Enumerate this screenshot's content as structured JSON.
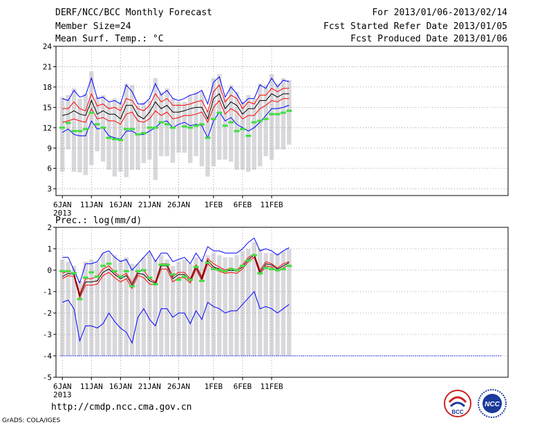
{
  "header": {
    "title": "DERF/NCC/BCC Monthly Forecast",
    "member_size": "Member Size=24",
    "variable": "Mean Surf. Temp.: °C",
    "period": "For 2013/01/06-2013/02/14",
    "fcst_start": "Fcst Started Refer Date 2013/01/05",
    "fcst_produced": "Fcst Produced Date 2013/01/06"
  },
  "footer": {
    "url": "http://cmdp.ncc.cma.gov.cn",
    "credit": "GrADS: COLA/IGES"
  },
  "logos": {
    "bcc": "BCC",
    "ncc": "NCC"
  },
  "colors": {
    "max_min": "#0000ff",
    "plus_minus_sd": "#ff0000",
    "mean": "#000000",
    "observed": "#44dd44",
    "range_bar": "#d8d8dc"
  },
  "chart_data": [
    {
      "type": "line",
      "label": "",
      "dates": [
        "6JAN",
        "7JAN",
        "8JAN",
        "9JAN",
        "10JAN",
        "11JAN",
        "12JAN",
        "13JAN",
        "14JAN",
        "15JAN",
        "16JAN",
        "17JAN",
        "18JAN",
        "19JAN",
        "20JAN",
        "21JAN",
        "22JAN",
        "23JAN",
        "24JAN",
        "25JAN",
        "26JAN",
        "27JAN",
        "28JAN",
        "29JAN",
        "30JAN",
        "31JAN",
        "1FEB",
        "2FEB",
        "3FEB",
        "4FEB",
        "5FEB",
        "6FEB",
        "7FEB",
        "8FEB",
        "9FEB",
        "10FEB",
        "11FEB",
        "12FEB",
        "13FEB",
        "14FEB"
      ],
      "xticks": [
        "6JAN",
        "11JAN",
        "16JAN",
        "21JAN",
        "26JAN",
        "1FEB",
        "6FEB",
        "11FEB"
      ],
      "xyear": "2013",
      "ylim": [
        2,
        24
      ],
      "yticks": [
        3,
        6,
        9,
        12,
        15,
        18,
        21,
        24
      ],
      "bar_low": [
        5.5,
        8.8,
        5.5,
        5.4,
        5.0,
        6.5,
        8.5,
        7.0,
        5.8,
        4.8,
        5.5,
        4.7,
        5.8,
        5.8,
        6.8,
        7.3,
        4.3,
        7.8,
        7.8,
        6.8,
        8.3,
        8.3,
        6.8,
        7.8,
        6.3,
        4.8,
        6.3,
        7.3,
        7.3,
        7.0,
        5.8,
        5.8,
        5.5,
        5.8,
        6.3,
        7.8,
        7.3,
        8.8,
        8.8,
        9.5
      ],
      "bar_high": [
        16.5,
        16.8,
        17.8,
        16.3,
        17.0,
        20.3,
        16.5,
        16.8,
        15.8,
        16.3,
        15.8,
        18.5,
        18.3,
        15.3,
        15.8,
        16.0,
        19.3,
        17.3,
        17.8,
        16.3,
        15.8,
        15.8,
        16.8,
        17.3,
        17.3,
        14.5,
        19.3,
        19.9,
        16.3,
        18.3,
        17.3,
        15.8,
        16.8,
        16.3,
        18.5,
        18.3,
        19.9,
        18.5,
        19.3,
        19.0
      ],
      "series": [
        {
          "name": "Max",
          "values": [
            16.3,
            16.0,
            17.5,
            16.5,
            16.8,
            19.3,
            16.3,
            16.5,
            15.8,
            16.0,
            15.5,
            18.3,
            17.3,
            15.5,
            15.5,
            16.3,
            18.5,
            16.8,
            17.5,
            16.3,
            16.0,
            16.3,
            16.8,
            17.0,
            17.5,
            15.5,
            18.7,
            19.5,
            16.5,
            18.0,
            17.0,
            15.5,
            16.3,
            16.3,
            18.3,
            17.8,
            19.3,
            18.0,
            19.0,
            18.8
          ]
        },
        {
          "name": "Mean+SD",
          "values": [
            14.8,
            14.8,
            15.8,
            14.8,
            14.5,
            17.0,
            15.2,
            15.5,
            14.8,
            15.0,
            14.5,
            16.3,
            16.0,
            14.8,
            14.5,
            15.3,
            17.0,
            15.8,
            16.3,
            15.3,
            15.3,
            15.3,
            15.5,
            15.8,
            16.0,
            14.3,
            17.3,
            18.3,
            15.8,
            16.8,
            16.3,
            14.8,
            15.8,
            15.5,
            16.8,
            16.8,
            17.8,
            17.3,
            17.8,
            17.8
          ]
        },
        {
          "name": "Mean",
          "values": [
            13.8,
            14.0,
            14.5,
            14.0,
            13.8,
            16.0,
            14.0,
            14.5,
            14.0,
            14.0,
            13.3,
            15.3,
            15.3,
            13.8,
            13.3,
            14.3,
            15.8,
            14.8,
            15.3,
            14.3,
            14.3,
            14.5,
            14.8,
            15.0,
            15.0,
            13.3,
            16.3,
            17.0,
            14.8,
            15.8,
            15.3,
            14.0,
            14.8,
            14.8,
            16.0,
            16.0,
            17.0,
            16.5,
            17.0,
            17.0
          ]
        },
        {
          "name": "Mean-SD",
          "values": [
            12.8,
            13.0,
            13.3,
            13.0,
            12.8,
            14.8,
            13.3,
            13.5,
            13.0,
            13.0,
            12.5,
            14.0,
            14.3,
            13.0,
            12.8,
            13.3,
            14.5,
            13.8,
            14.3,
            13.3,
            13.5,
            13.8,
            13.8,
            14.0,
            14.3,
            12.8,
            15.0,
            16.0,
            14.0,
            14.8,
            14.3,
            13.3,
            13.8,
            13.8,
            14.8,
            15.3,
            16.0,
            15.8,
            16.3,
            16.3
          ]
        },
        {
          "name": "Min",
          "values": [
            11.3,
            11.8,
            11.0,
            10.8,
            10.8,
            13.0,
            11.8,
            12.0,
            10.8,
            10.5,
            10.3,
            11.5,
            11.5,
            11.0,
            11.0,
            11.5,
            12.0,
            12.8,
            13.0,
            12.0,
            12.5,
            12.8,
            12.3,
            12.5,
            12.3,
            10.5,
            13.0,
            14.3,
            13.0,
            13.5,
            12.5,
            12.0,
            11.5,
            12.0,
            12.8,
            13.8,
            14.8,
            14.8,
            15.0,
            15.3
          ]
        },
        {
          "name": "Observed",
          "values": [
            12.0,
            12.7,
            11.5,
            11.5,
            11.8,
            14.2,
            12.5,
            12.0,
            10.5,
            10.3,
            10.2,
            11.8,
            11.8,
            11.0,
            11.2,
            12.0,
            12.0,
            12.8,
            12.5,
            12.0,
            null,
            12.2,
            12.0,
            12.3,
            12.5,
            10.5,
            13.3,
            14.2,
            12.3,
            12.8,
            11.5,
            11.8,
            10.8,
            12.8,
            13.0,
            13.3,
            14.0,
            14.0,
            14.2,
            14.5
          ]
        }
      ]
    },
    {
      "type": "line",
      "label": "Prec.: log(mm/d)",
      "dates": [
        "6JAN",
        "7JAN",
        "8JAN",
        "9JAN",
        "10JAN",
        "11JAN",
        "12JAN",
        "13JAN",
        "14JAN",
        "15JAN",
        "16JAN",
        "17JAN",
        "18JAN",
        "19JAN",
        "20JAN",
        "21JAN",
        "22JAN",
        "23JAN",
        "24JAN",
        "25JAN",
        "26JAN",
        "27JAN",
        "28JAN",
        "29JAN",
        "30JAN",
        "31JAN",
        "1FEB",
        "2FEB",
        "3FEB",
        "4FEB",
        "5FEB",
        "6FEB",
        "7FEB",
        "8FEB",
        "9FEB",
        "10FEB",
        "11FEB",
        "12FEB",
        "13FEB",
        "14FEB"
      ],
      "xticks": [
        "6JAN",
        "11JAN",
        "16JAN",
        "21JAN",
        "26JAN",
        "1FEB",
        "6FEB",
        "11FEB"
      ],
      "xyear": "2013",
      "ylim": [
        -5,
        2
      ],
      "yticks": [
        -5,
        -4,
        -3,
        -2,
        -1,
        0,
        1,
        2
      ],
      "bar_low": [
        -4,
        -4,
        -4,
        -4,
        -4,
        -4,
        -4,
        -4,
        -4,
        -4,
        -4,
        -4,
        -4,
        -4,
        -4,
        -4,
        -4,
        -4,
        -4,
        -4,
        -4,
        -4,
        -4,
        -4,
        -4,
        -4,
        -4,
        -4,
        -4,
        -4,
        -4,
        -4,
        -4,
        -4,
        -4,
        -4,
        -4,
        -4,
        -4,
        -4
      ],
      "bar_high": [
        0.5,
        0.4,
        0.2,
        -0.5,
        0.4,
        0.5,
        0.4,
        0.8,
        0.8,
        0.7,
        0.5,
        0.6,
        0.3,
        0.3,
        0.6,
        0.8,
        0.5,
        0.7,
        0.5,
        0.2,
        0.4,
        0.5,
        0.3,
        0.6,
        0.5,
        0.7,
        0.8,
        0.7,
        0.6,
        0.6,
        0.7,
        0.9,
        1.0,
        1.3,
        1.0,
        0.8,
        0.8,
        0.8,
        0.9,
        1.0
      ],
      "series": [
        {
          "name": "Max",
          "values": [
            0.6,
            0.6,
            0.0,
            -0.6,
            0.3,
            0.3,
            0.4,
            0.8,
            0.9,
            0.6,
            0.4,
            0.5,
            0.0,
            0.3,
            0.6,
            0.9,
            0.4,
            0.8,
            0.8,
            0.4,
            0.5,
            0.6,
            0.3,
            0.8,
            0.4,
            1.1,
            0.9,
            0.9,
            0.8,
            0.8,
            0.8,
            1.0,
            1.3,
            1.5,
            0.9,
            1.0,
            0.9,
            0.7,
            0.9,
            1.05
          ]
        },
        {
          "name": "Mean+SD",
          "values": [
            -0.15,
            -0.05,
            -0.15,
            -1.1,
            -0.4,
            -0.4,
            -0.3,
            0.05,
            0.2,
            -0.1,
            -0.3,
            -0.15,
            -0.6,
            -0.05,
            0.0,
            -0.4,
            -0.55,
            0.3,
            0.3,
            -0.3,
            -0.1,
            -0.1,
            -0.4,
            0.25,
            -0.3,
            0.55,
            0.3,
            0.15,
            0.0,
            0.1,
            0.0,
            0.25,
            0.6,
            0.75,
            0.0,
            0.4,
            0.3,
            0.1,
            0.3,
            0.4
          ]
        },
        {
          "name": "Mean",
          "values": [
            -0.3,
            -0.15,
            -0.2,
            -1.2,
            -0.55,
            -0.55,
            -0.5,
            -0.1,
            0.05,
            -0.2,
            -0.4,
            -0.25,
            -0.7,
            -0.15,
            -0.2,
            -0.5,
            -0.6,
            0.2,
            0.2,
            -0.4,
            -0.2,
            -0.2,
            -0.5,
            0.15,
            -0.4,
            0.45,
            0.15,
            0.05,
            -0.05,
            0.0,
            -0.05,
            0.15,
            0.5,
            0.7,
            -0.1,
            0.3,
            0.25,
            0.05,
            0.2,
            0.35
          ]
        },
        {
          "name": "Mean-SD",
          "values": [
            -0.4,
            -0.25,
            -0.3,
            -1.3,
            -0.7,
            -0.7,
            -0.65,
            -0.25,
            -0.1,
            -0.35,
            -0.55,
            -0.4,
            -0.85,
            -0.25,
            -0.35,
            -0.65,
            -0.7,
            0.05,
            0.05,
            -0.55,
            -0.35,
            -0.35,
            -0.6,
            0.05,
            -0.5,
            0.3,
            0.05,
            -0.05,
            -0.15,
            -0.1,
            -0.15,
            0.05,
            0.4,
            0.6,
            -0.2,
            0.2,
            0.15,
            -0.05,
            0.1,
            0.25
          ]
        },
        {
          "name": "Min",
          "values": [
            -1.5,
            -1.4,
            -1.8,
            -3.3,
            -2.6,
            -2.6,
            -2.7,
            -2.5,
            -2.0,
            -2.4,
            -2.7,
            -2.9,
            -3.4,
            -2.2,
            -1.8,
            -2.3,
            -2.6,
            -1.8,
            -1.8,
            -2.2,
            -2.0,
            -2.0,
            -2.5,
            -1.9,
            -2.3,
            -1.5,
            -1.7,
            -1.8,
            -2.0,
            -1.9,
            -1.9,
            -1.6,
            -1.3,
            -1.0,
            -1.8,
            -1.7,
            -1.8,
            -2.0,
            -1.8,
            -1.6
          ]
        },
        {
          "name": "Observed",
          "values": [
            -0.05,
            -0.05,
            -0.15,
            -1.35,
            -0.35,
            -0.1,
            -0.3,
            0.2,
            0.3,
            -0.05,
            -0.3,
            -0.05,
            -0.75,
            -0.05,
            0.0,
            -0.35,
            -0.65,
            0.25,
            0.25,
            -0.2,
            -0.45,
            -0.3,
            -0.45,
            0.15,
            -0.5,
            0.35,
            0.05,
            0.0,
            -0.05,
            0.05,
            0.0,
            0.2,
            0.45,
            0.7,
            -0.15,
            0.1,
            0.05,
            0.0,
            0.05,
            0.2
          ]
        }
      ]
    }
  ]
}
